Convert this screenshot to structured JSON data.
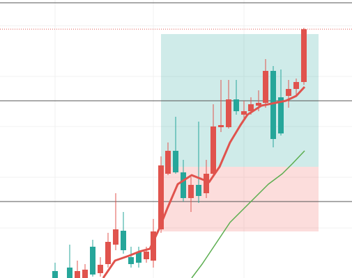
{
  "chart_data": {
    "type": "candlestick",
    "xlim": [
      0,
      505
    ],
    "ylim": [
      0,
      400
    ],
    "grid": true,
    "xticks": [
      79,
      220,
      350
    ],
    "yticks": [
      72,
      145,
      218,
      290,
      363
    ],
    "up_color": "#e0534d",
    "down_color": "#26a69a",
    "x": [
      79,
      100,
      111,
      122,
      133,
      144,
      155,
      166,
      177,
      188,
      199,
      210,
      220,
      231,
      241,
      252,
      263,
      274,
      285,
      296,
      306,
      317,
      328,
      339,
      350,
      360,
      371,
      381,
      392,
      403,
      414,
      425,
      436
    ],
    "open": [
      10,
      15,
      0,
      0,
      45,
      7,
      20,
      48,
      68,
      30,
      37,
      27,
      25,
      70,
      150,
      183,
      152,
      115,
      134,
      122,
      150,
      217,
      217,
      257,
      235,
      240,
      248,
      252,
      298,
      260,
      262,
      272,
      282
    ],
    "high": [
      22,
      48,
      25,
      20,
      55,
      30,
      65,
      122,
      95,
      45,
      45,
      45,
      85,
      175,
      195,
      232,
      170,
      145,
      225,
      170,
      250,
      285,
      285,
      285,
      255,
      260,
      270,
      315,
      305,
      300,
      285,
      287,
      360
    ],
    "low": [
      0,
      0,
      0,
      0,
      2,
      2,
      15,
      40,
      35,
      15,
      15,
      22,
      15,
      65,
      148,
      150,
      110,
      95,
      108,
      115,
      145,
      210,
      215,
      235,
      228,
      235,
      240,
      245,
      188,
      205,
      245,
      262,
      278
    ],
    "close": [
      0,
      0,
      10,
      12,
      5,
      19,
      52,
      70,
      40,
      20,
      22,
      38,
      67,
      162,
      183,
      152,
      115,
      134,
      118,
      150,
      218,
      220,
      257,
      240,
      240,
      250,
      252,
      298,
      200,
      208,
      272,
      282,
      358
    ],
    "lines": [
      {
        "color": "#e0534d",
        "width": 3,
        "x": [
          148,
          165,
          185,
          200,
          215,
          228,
          240,
          255,
          275,
          290,
          300,
          315,
          330,
          345,
          355,
          375,
          395,
          410,
          425,
          437
        ],
        "values": [
          0,
          25,
          32,
          38,
          42,
          70,
          100,
          135,
          148,
          142,
          138,
          160,
          195,
          220,
          235,
          248,
          252,
          255,
          262,
          275
        ]
      },
      {
        "color": "#5aad4e",
        "width": 1.5,
        "x": [
          275,
          290,
          310,
          330,
          350,
          365,
          385,
          405,
          420,
          437
        ],
        "values": [
          0,
          20,
          50,
          80,
          100,
          115,
          135,
          150,
          165,
          183
        ]
      }
    ],
    "levels": [
      396,
      255,
      110
    ],
    "level_color": "#555555",
    "price_line": 358,
    "price_line_color": "#e0534d",
    "position": {
      "x": [
        231,
        457
      ],
      "target": 351,
      "entry": 160,
      "stop": 67,
      "target_color": "rgba(38,166,154,0.22)",
      "stop_color": "rgba(239,83,80,0.2)"
    }
  }
}
